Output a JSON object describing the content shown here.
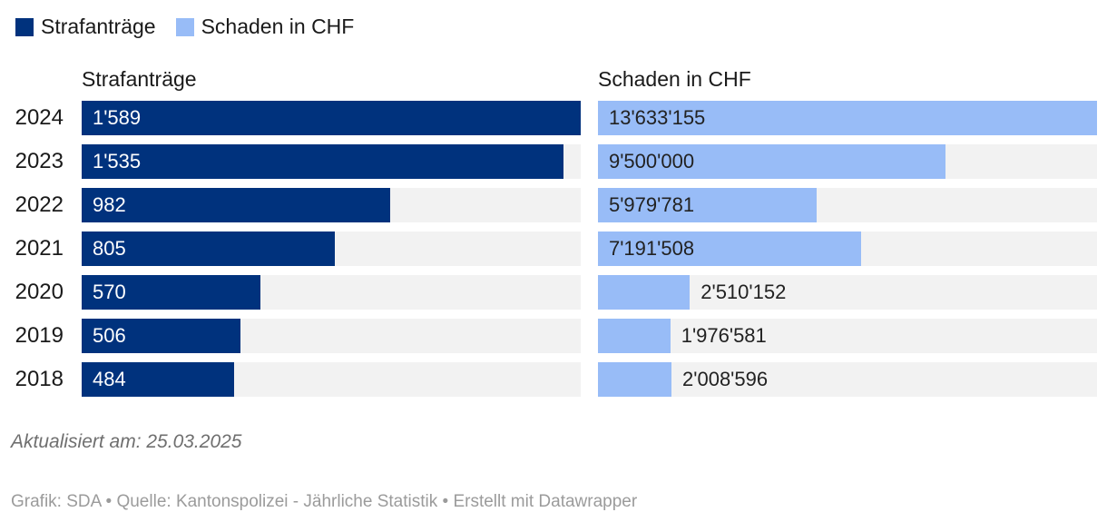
{
  "legend": {
    "items": [
      {
        "label": "Strafanträge",
        "color": "#00327d"
      },
      {
        "label": "Schaden in CHF",
        "color": "#98bcf7"
      }
    ]
  },
  "columns": {
    "left_header": "Strafanträge",
    "right_header": "Schaden in CHF"
  },
  "chart_data": {
    "type": "bar",
    "orientation": "horizontal",
    "grid": false,
    "legend_position": "top-left",
    "categories": [
      "2024",
      "2023",
      "2022",
      "2021",
      "2020",
      "2019",
      "2018"
    ],
    "series": [
      {
        "name": "Strafanträge",
        "color": "#00327d",
        "label_color": "#ffffff",
        "track_color": "#f2f2f2",
        "axis_max": 1589,
        "values": [
          1589,
          1535,
          982,
          805,
          570,
          506,
          484
        ],
        "labels": [
          "1'589",
          "1'535",
          "982",
          "805",
          "570",
          "506",
          "484"
        ]
      },
      {
        "name": "Schaden in CHF",
        "color": "#98bcf7",
        "label_color": "#222222",
        "track_color": "#f2f2f2",
        "axis_max": 13633155,
        "values": [
          13633155,
          9500000,
          5979781,
          7191508,
          2510152,
          1976581,
          2008596
        ],
        "labels": [
          "13'633'155",
          "9'500'000",
          "5'979'781",
          "7'191'508",
          "2'510'152",
          "1'976'581",
          "2'008'596"
        ]
      }
    ],
    "value_label_placement": "inside bar; outside right when bar shorter than 25% of track"
  },
  "footer": {
    "updated": "Aktualisiert am: 25.03.2025",
    "credits": "Grafik: SDA • Quelle: Kantonspolizei - Jährliche Statistik • Erstellt mit Datawrapper"
  }
}
